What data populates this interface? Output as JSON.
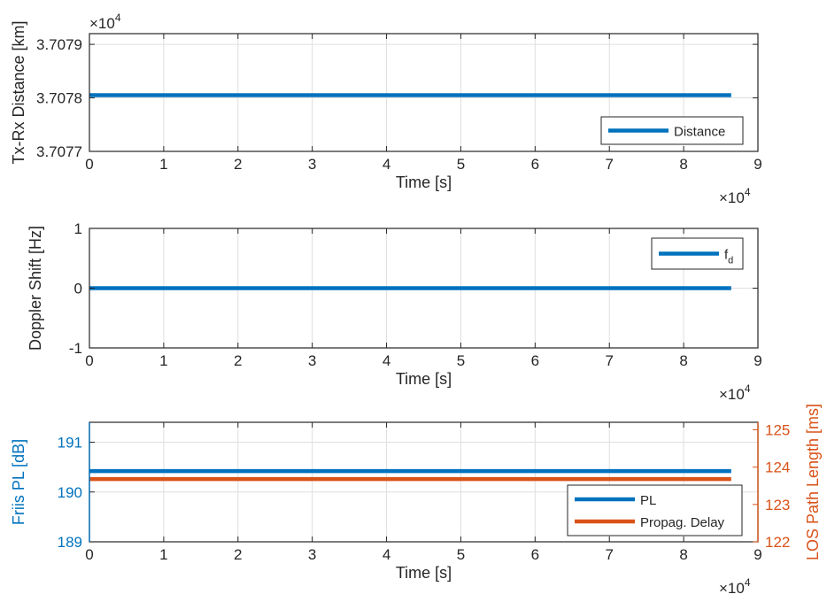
{
  "colors": {
    "blue": "#0072BD",
    "orange": "#D95319",
    "axis": "#262626",
    "grid": "#dfdfdf"
  },
  "chart_data": [
    {
      "type": "line",
      "xlabel": "Time [s]",
      "ylabel": "Tx-Rx Distance [km]",
      "xlim": [
        0,
        90000
      ],
      "ylim": [
        37077,
        37079.2
      ],
      "x_ticks": [
        0,
        10000,
        20000,
        30000,
        40000,
        50000,
        60000,
        70000,
        80000,
        90000
      ],
      "x_tick_labels": [
        "0",
        "1",
        "2",
        "3",
        "4",
        "5",
        "6",
        "7",
        "8",
        "9"
      ],
      "x_exponent": {
        "base": "×10",
        "power": "4"
      },
      "y_ticks": [
        37077,
        37078,
        37079
      ],
      "y_tick_labels": [
        "3.7077",
        "3.7078",
        "3.7079"
      ],
      "y_exponent": {
        "base": "×10",
        "power": "4"
      },
      "grid": true,
      "legend": "bottom-right",
      "series": [
        {
          "name": "Distance",
          "color": "#0072BD",
          "x": [
            0,
            86400
          ],
          "y": [
            37078.05,
            37078.05
          ]
        }
      ]
    },
    {
      "type": "line",
      "xlabel": "Time [s]",
      "ylabel": "Doppler Shift [Hz]",
      "xlim": [
        0,
        90000
      ],
      "ylim": [
        -1,
        1
      ],
      "x_ticks": [
        0,
        10000,
        20000,
        30000,
        40000,
        50000,
        60000,
        70000,
        80000,
        90000
      ],
      "x_tick_labels": [
        "0",
        "1",
        "2",
        "3",
        "4",
        "5",
        "6",
        "7",
        "8",
        "9"
      ],
      "x_exponent": {
        "base": "×10",
        "power": "4"
      },
      "y_ticks": [
        -1,
        0,
        1
      ],
      "y_tick_labels": [
        "-1",
        "0",
        "1"
      ],
      "grid": true,
      "legend": "top-right",
      "series": [
        {
          "name": "f",
          "subscript": "d",
          "color": "#0072BD",
          "x": [
            0,
            86400
          ],
          "y": [
            0,
            0
          ]
        }
      ]
    },
    {
      "type": "line",
      "xlabel": "Time [s]",
      "ylabel": "Friis PL [dB]",
      "ylabel_right": "LOS Path Length [ms]",
      "xlim": [
        0,
        90000
      ],
      "ylim": [
        189,
        191.4
      ],
      "ylim_right": [
        122,
        125.2
      ],
      "x_ticks": [
        0,
        10000,
        20000,
        30000,
        40000,
        50000,
        60000,
        70000,
        80000,
        90000
      ],
      "x_tick_labels": [
        "0",
        "1",
        "2",
        "3",
        "4",
        "5",
        "6",
        "7",
        "8",
        "9"
      ],
      "x_exponent": {
        "base": "×10",
        "power": "4"
      },
      "y_ticks": [
        189,
        190,
        191
      ],
      "y_tick_labels": [
        "189",
        "190",
        "191"
      ],
      "y_ticks_right": [
        122,
        123,
        124,
        125
      ],
      "y_tick_labels_right": [
        "122",
        "123",
        "124",
        "125"
      ],
      "grid": true,
      "legend": "bottom-right",
      "series": [
        {
          "name": "PL",
          "axis": "left",
          "color": "#0072BD",
          "x": [
            0,
            86400
          ],
          "y": [
            190.42,
            190.42
          ]
        },
        {
          "name": "Propag. Delay",
          "axis": "right",
          "color": "#D95319",
          "x": [
            0,
            86400
          ],
          "y": [
            123.68,
            123.68
          ]
        }
      ]
    }
  ]
}
